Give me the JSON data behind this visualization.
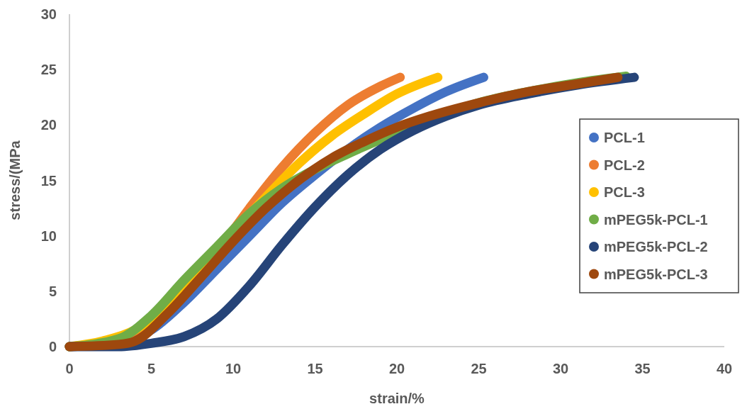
{
  "chart_data": {
    "type": "line",
    "xlabel": "strain/%",
    "ylabel": "stress/(MPa",
    "xlim": [
      0,
      40
    ],
    "xticks": [
      0,
      5,
      10,
      15,
      20,
      25,
      30,
      35,
      40
    ],
    "ylim": [
      0,
      30
    ],
    "yticks": [
      0,
      5,
      10,
      15,
      20,
      25,
      30
    ],
    "legend": "right",
    "grid": false,
    "series": [
      {
        "name": "PCL-1",
        "color": "#4472c4",
        "x": [
          0,
          3,
          5,
          7,
          9,
          11,
          13,
          15,
          17,
          19,
          21,
          23,
          25.3
        ],
        "values": [
          0,
          0.3,
          1.5,
          4,
          7,
          10,
          13,
          15.5,
          17.8,
          19.8,
          21.5,
          23,
          24.3
        ]
      },
      {
        "name": "PCL-2",
        "color": "#ed7d31",
        "x": [
          0,
          3,
          5,
          7,
          9,
          11,
          13,
          15,
          17,
          19,
          20.2
        ],
        "values": [
          0,
          0.5,
          2,
          5,
          8.5,
          12.5,
          16.2,
          19.3,
          21.8,
          23.5,
          24.3
        ]
      },
      {
        "name": "PCL-3",
        "color": "#ffc000",
        "x": [
          0,
          2,
          4,
          6,
          8,
          10,
          12,
          14,
          16,
          18,
          20,
          22.5
        ],
        "values": [
          0,
          0.5,
          1.5,
          3.8,
          7,
          10.3,
          13.5,
          16.5,
          19,
          21,
          22.8,
          24.3
        ]
      },
      {
        "name": "mPEG5k-PCL-1",
        "color": "#70ad47",
        "x": [
          0,
          3,
          5,
          7,
          9,
          11,
          13,
          15,
          17,
          19,
          21,
          23,
          25,
          28,
          31,
          34
        ],
        "values": [
          0,
          0.7,
          2.8,
          6,
          9,
          12,
          14.3,
          16,
          17.4,
          18.7,
          19.9,
          21,
          22,
          23,
          23.8,
          24.4
        ]
      },
      {
        "name": "mPEG5k-PCL-2",
        "color": "#264478",
        "x": [
          0,
          3,
          5,
          7,
          9,
          11,
          13,
          15,
          17,
          19,
          21,
          23,
          25,
          28,
          31,
          34.5
        ],
        "values": [
          0,
          0,
          0.3,
          0.9,
          2.5,
          5.5,
          9.2,
          12.6,
          15.5,
          17.8,
          19.5,
          20.8,
          21.8,
          22.8,
          23.6,
          24.3
        ]
      },
      {
        "name": "mPEG5k-PCL-3",
        "color": "#9e480e",
        "x": [
          0,
          3,
          4,
          6,
          8,
          10,
          12,
          14,
          16,
          18,
          20,
          22,
          25,
          28,
          31,
          33.5
        ],
        "values": [
          0,
          0.2,
          0.5,
          3,
          6.2,
          9.5,
          12.5,
          15,
          17,
          18.5,
          19.8,
          20.8,
          22,
          23,
          23.7,
          24.3
        ]
      }
    ]
  }
}
